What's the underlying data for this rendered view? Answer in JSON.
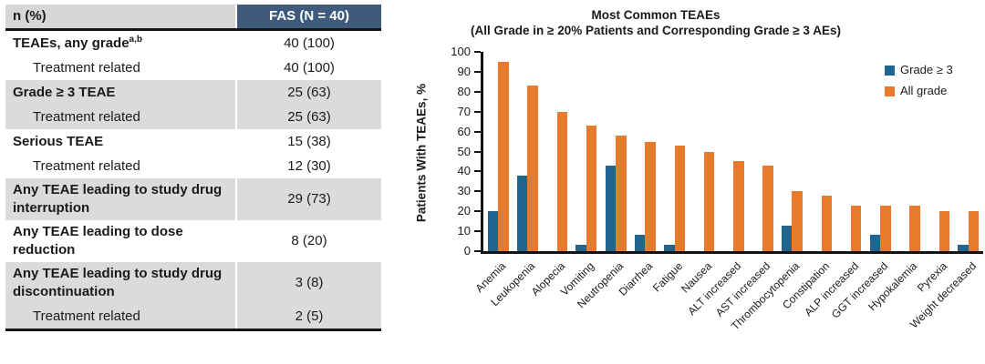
{
  "colors": {
    "table_header_bg": "#3E5B7E",
    "table_header_text": "#FFFFFF",
    "table_header_label_bg": "#D6D6D6",
    "row_shade": "#DBDBDB",
    "grade3_blue": "#1F6590",
    "all_grade_orange": "#E87A2E",
    "axis_black": "#141414"
  },
  "table": {
    "header": {
      "label_col": "n (%)",
      "value_col": "FAS (N = 40)"
    },
    "rows": [
      {
        "label": "TEAEs, any grade",
        "sup": "a,b",
        "value": "40 (100)",
        "bold": true,
        "indent": false,
        "shaded": false
      },
      {
        "label": "Treatment related",
        "sup": "",
        "value": "40 (100)",
        "bold": false,
        "indent": true,
        "shaded": false
      },
      {
        "label": "Grade ≥ 3 TEAE",
        "sup": "",
        "value": "25 (63)",
        "bold": true,
        "indent": false,
        "shaded": true
      },
      {
        "label": "Treatment related",
        "sup": "",
        "value": "25 (63)",
        "bold": false,
        "indent": true,
        "shaded": true
      },
      {
        "label": "Serious TEAE",
        "sup": "",
        "value": "15 (38)",
        "bold": true,
        "indent": false,
        "shaded": false
      },
      {
        "label": "Treatment related",
        "sup": "",
        "value": "12 (30)",
        "bold": false,
        "indent": true,
        "shaded": false
      },
      {
        "label": "Any TEAE leading to study drug interruption",
        "sup": "",
        "value": "29 (73)",
        "bold": true,
        "indent": false,
        "shaded": true
      },
      {
        "label": "Any TEAE leading to dose reduction",
        "sup": "",
        "value": "8 (20)",
        "bold": true,
        "indent": false,
        "shaded": false
      },
      {
        "label": "Any TEAE leading to study drug discontinuation",
        "sup": "",
        "value": "3 (8)",
        "bold": true,
        "indent": false,
        "shaded": true
      },
      {
        "label": "Treatment related",
        "sup": "",
        "value": "2 (5)",
        "bold": false,
        "indent": true,
        "shaded": true
      }
    ]
  },
  "chart_data": {
    "type": "bar",
    "title": "Most Common TEAEs",
    "subtitle": "(All Grade in ≥ 20% Patients and Corresponding Grade ≥ 3 AEs)",
    "ylabel": "Patients With TEAEs, %",
    "xlabel": "",
    "ylim": [
      0,
      100
    ],
    "yticks": [
      0,
      10,
      20,
      30,
      40,
      50,
      60,
      70,
      80,
      90,
      100
    ],
    "grid": false,
    "legend_position": "top-right",
    "categories": [
      "Anemia",
      "Leukopenia",
      "Alopecia",
      "Vomiting",
      "Neutropenia",
      "Diarrhea",
      "Fatigue",
      "Nausea",
      "ALT increased",
      "AST increased",
      "Thrombocytopenia",
      "Constipation",
      "ALP increased",
      "GGT increased",
      "Hypokalemia",
      "Pyrexia",
      "Weight decreased"
    ],
    "series": [
      {
        "name": "Grade ≥ 3",
        "color": "#1F6590",
        "values": [
          20,
          38,
          0,
          3,
          43,
          8,
          3,
          0,
          0,
          0,
          13,
          0,
          0,
          8,
          0,
          0,
          3
        ]
      },
      {
        "name": "All grade",
        "color": "#E87A2E",
        "values": [
          95,
          83,
          70,
          63,
          58,
          55,
          53,
          50,
          45,
          43,
          30,
          28,
          23,
          23,
          23,
          20,
          20
        ]
      }
    ]
  }
}
